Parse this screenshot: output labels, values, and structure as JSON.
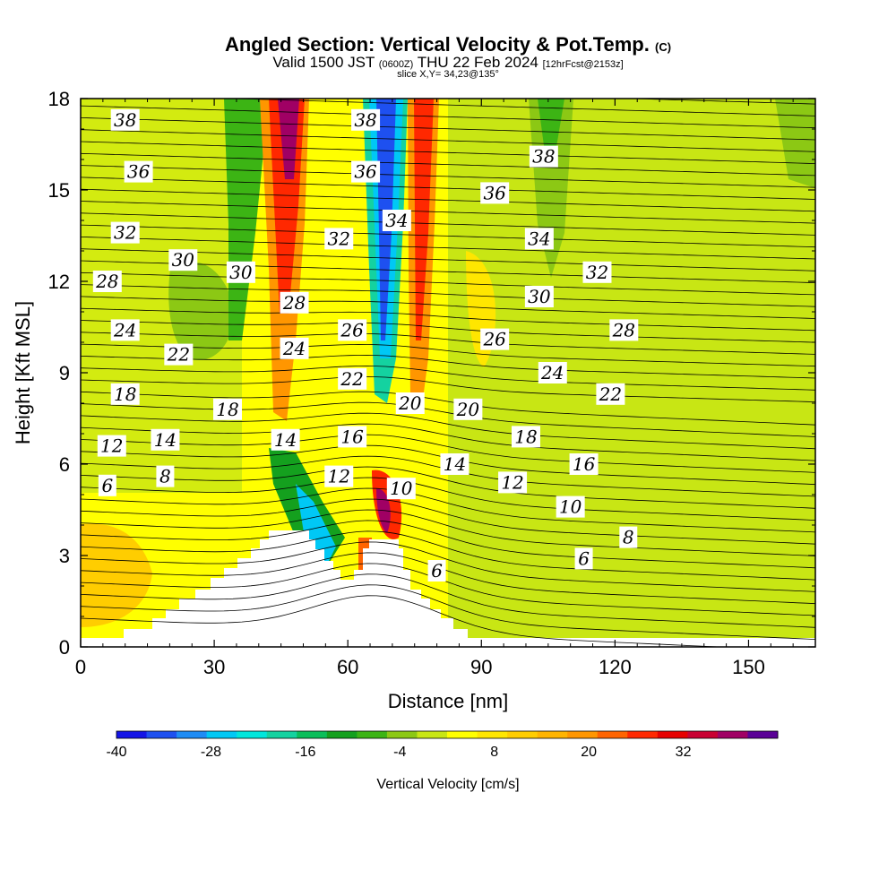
{
  "header": {
    "title": "Angled Section: Vertical Velocity & Pot.Temp.",
    "title_suffix": "(C)",
    "valid_a": "Valid 1500 JST",
    "valid_zulu": "(0600Z)",
    "valid_b": "THU 22 Feb 2024",
    "forecast": "[12hrFcst@2153z]",
    "slice": "slice X,Y= 34,23@135°"
  },
  "chart_data": {
    "type": "heatmap",
    "xlabel": "Distance [nm]",
    "ylabel": "Height [Kft MSL]",
    "xlim": [
      0,
      165
    ],
    "ylim": [
      0,
      18
    ],
    "x_ticks": [
      0,
      30,
      60,
      90,
      120,
      150
    ],
    "y_ticks": [
      0,
      3,
      6,
      9,
      12,
      15,
      18
    ],
    "colorbar": {
      "label": "Vertical Velocity [cm/s]",
      "ticks": [
        -40,
        -28,
        -16,
        -4,
        8,
        20,
        32
      ],
      "range": [
        -40,
        44
      ],
      "step": 4,
      "colors": [
        "#1414e6",
        "#1e50f0",
        "#1e8cf5",
        "#00c8f5",
        "#00e6dc",
        "#14d2a0",
        "#0abe5a",
        "#14a01e",
        "#3cb414",
        "#8cc814",
        "#c8e614",
        "#ffff00",
        "#ffe600",
        "#ffcd00",
        "#ffb400",
        "#ff9600",
        "#ff6400",
        "#ff2800",
        "#e60000",
        "#c80032",
        "#a00064",
        "#5a0096"
      ]
    },
    "theta_contour_labels": [
      {
        "x": 10,
        "y": 17.3,
        "v": "38"
      },
      {
        "x": 13,
        "y": 15.6,
        "v": "36"
      },
      {
        "x": 10,
        "y": 13.6,
        "v": "32"
      },
      {
        "x": 23,
        "y": 12.7,
        "v": "30"
      },
      {
        "x": 36,
        "y": 12.3,
        "v": "30"
      },
      {
        "x": 6,
        "y": 12.0,
        "v": "28"
      },
      {
        "x": 10,
        "y": 10.4,
        "v": "24"
      },
      {
        "x": 22,
        "y": 9.6,
        "v": "22"
      },
      {
        "x": 10,
        "y": 8.3,
        "v": "18"
      },
      {
        "x": 33,
        "y": 7.8,
        "v": "18"
      },
      {
        "x": 7,
        "y": 6.6,
        "v": "12"
      },
      {
        "x": 19,
        "y": 6.8,
        "v": "14"
      },
      {
        "x": 6,
        "y": 5.3,
        "v": "6"
      },
      {
        "x": 19,
        "y": 5.6,
        "v": "8"
      },
      {
        "x": 46,
        "y": 6.8,
        "v": "14"
      },
      {
        "x": 58,
        "y": 5.6,
        "v": "12"
      },
      {
        "x": 64,
        "y": 17.3,
        "v": "38"
      },
      {
        "x": 64,
        "y": 15.6,
        "v": "36"
      },
      {
        "x": 71,
        "y": 14.0,
        "v": "34"
      },
      {
        "x": 58,
        "y": 13.4,
        "v": "32"
      },
      {
        "x": 48,
        "y": 11.3,
        "v": "28"
      },
      {
        "x": 61,
        "y": 10.4,
        "v": "26"
      },
      {
        "x": 48,
        "y": 9.8,
        "v": "24"
      },
      {
        "x": 61,
        "y": 8.8,
        "v": "22"
      },
      {
        "x": 74,
        "y": 8.0,
        "v": "20"
      },
      {
        "x": 61,
        "y": 6.9,
        "v": "16"
      },
      {
        "x": 72,
        "y": 5.2,
        "v": "10"
      },
      {
        "x": 104,
        "y": 16.1,
        "v": "38"
      },
      {
        "x": 93,
        "y": 14.9,
        "v": "36"
      },
      {
        "x": 103,
        "y": 13.4,
        "v": "34"
      },
      {
        "x": 116,
        "y": 12.3,
        "v": "32"
      },
      {
        "x": 103,
        "y": 11.5,
        "v": "30"
      },
      {
        "x": 93,
        "y": 10.1,
        "v": "26"
      },
      {
        "x": 122,
        "y": 10.4,
        "v": "28"
      },
      {
        "x": 106,
        "y": 9.0,
        "v": "24"
      },
      {
        "x": 119,
        "y": 8.3,
        "v": "22"
      },
      {
        "x": 87,
        "y": 7.8,
        "v": "20"
      },
      {
        "x": 100,
        "y": 6.9,
        "v": "18"
      },
      {
        "x": 84,
        "y": 6.0,
        "v": "14"
      },
      {
        "x": 113,
        "y": 6.0,
        "v": "16"
      },
      {
        "x": 97,
        "y": 5.4,
        "v": "12"
      },
      {
        "x": 110,
        "y": 4.6,
        "v": "10"
      },
      {
        "x": 123,
        "y": 3.6,
        "v": "8"
      },
      {
        "x": 113,
        "y": 2.9,
        "v": "6"
      },
      {
        "x": 80,
        "y": 2.5,
        "v": "6"
      }
    ]
  }
}
